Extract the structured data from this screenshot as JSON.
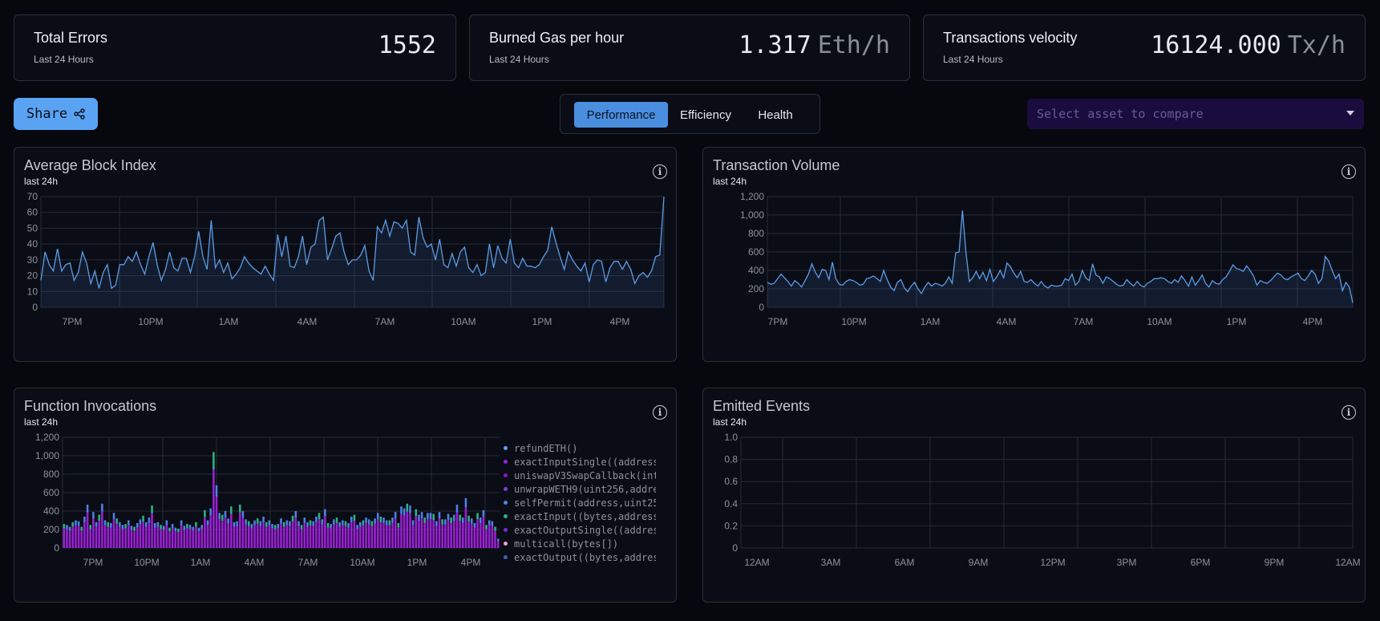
{
  "stats": [
    {
      "title": "Total Errors",
      "subtitle": "Last 24 Hours",
      "value": "1552",
      "unit": ""
    },
    {
      "title": "Burned Gas per hour",
      "subtitle": "Last 24 Hours",
      "value": "1.317",
      "unit": "Eth/h"
    },
    {
      "title": "Transactions velocity",
      "subtitle": "Last 24 Hours",
      "value": "16124.000",
      "unit": "Tx/h"
    }
  ],
  "toolbar": {
    "share_label": "Share",
    "tabs": [
      {
        "label": "Performance",
        "active": true
      },
      {
        "label": "Efficiency",
        "active": false
      },
      {
        "label": "Health",
        "active": false
      }
    ],
    "compare_placeholder": "Select asset to compare"
  },
  "cards": {
    "block_index": {
      "title": "Average Block Index",
      "subtitle": "last 24h",
      "info_icon": "info-icon"
    },
    "tx_volume": {
      "title": "Transaction Volume",
      "subtitle": "last 24h",
      "info_icon": "info-icon"
    },
    "function_invocations": {
      "title": "Function Invocations",
      "subtitle": "last 24h",
      "info_icon": "info-icon"
    },
    "emitted_events": {
      "title": "Emitted Events",
      "subtitle": "last 24h",
      "info_icon": "info-icon"
    }
  },
  "colors": {
    "accent": "#5aa2f2",
    "line": "#5b9ce6",
    "select_bg": "#1a0d3e"
  },
  "chart_data": [
    {
      "id": "block_index",
      "type": "area",
      "title": "Average Block Index",
      "x_tick_labels": [
        "7PM",
        "10PM",
        "1AM",
        "4AM",
        "7AM",
        "10AM",
        "1PM",
        "4PM"
      ],
      "y_ticks": [
        0,
        10,
        20,
        30,
        40,
        50,
        60,
        70
      ],
      "ylim": [
        0,
        70
      ],
      "grid": true,
      "values": [
        17,
        35,
        27,
        23,
        37,
        23,
        27,
        28,
        17,
        22,
        35,
        28,
        15,
        23,
        12,
        22,
        27,
        12,
        14,
        27,
        27,
        32,
        29,
        35,
        27,
        21,
        32,
        41,
        27,
        17,
        24,
        35,
        25,
        23,
        31,
        31,
        22,
        32,
        48,
        32,
        24,
        55,
        25,
        30,
        22,
        28,
        18,
        21,
        25,
        32,
        28,
        25,
        23,
        21,
        26,
        21,
        17,
        46,
        32,
        45,
        26,
        25,
        32,
        45,
        27,
        38,
        40,
        55,
        57,
        30,
        37,
        45,
        47,
        35,
        27,
        30,
        30,
        33,
        39,
        23,
        17,
        51,
        47,
        55,
        45,
        54,
        53,
        50,
        55,
        35,
        33,
        57,
        44,
        38,
        40,
        30,
        43,
        27,
        25,
        34,
        26,
        35,
        38,
        25,
        22,
        27,
        20,
        22,
        40,
        25,
        39,
        31,
        28,
        43,
        28,
        25,
        31,
        26,
        26,
        25,
        27,
        32,
        36,
        51,
        41,
        32,
        24,
        35,
        30,
        26,
        23,
        28,
        16,
        27,
        30,
        29,
        16,
        25,
        29,
        29,
        24,
        29,
        24,
        15,
        20,
        22,
        19,
        23,
        32,
        33,
        70
      ]
    },
    {
      "id": "tx_volume",
      "type": "area",
      "title": "Transaction Volume",
      "x_tick_labels": [
        "7PM",
        "10PM",
        "1AM",
        "4AM",
        "7AM",
        "10AM",
        "1PM",
        "4PM"
      ],
      "y_ticks": [
        0,
        200,
        400,
        600,
        800,
        "1,000",
        "1,200"
      ],
      "ylim": [
        0,
        1200
      ],
      "grid": true,
      "values": [
        270,
        250,
        260,
        310,
        360,
        320,
        280,
        230,
        290,
        260,
        220,
        290,
        360,
        470,
        380,
        320,
        410,
        400,
        300,
        490,
        310,
        250,
        240,
        280,
        300,
        290,
        270,
        240,
        250,
        310,
        320,
        340,
        310,
        280,
        400,
        300,
        220,
        180,
        270,
        300,
        210,
        170,
        230,
        270,
        200,
        150,
        220,
        270,
        230,
        260,
        250,
        230,
        260,
        330,
        260,
        590,
        600,
        1050,
        600,
        280,
        320,
        390,
        310,
        380,
        290,
        410,
        280,
        330,
        400,
        320,
        480,
        440,
        370,
        320,
        390,
        280,
        270,
        300,
        260,
        230,
        280,
        230,
        210,
        240,
        230,
        230,
        240,
        310,
        290,
        360,
        240,
        280,
        400,
        320,
        290,
        470,
        350,
        330,
        260,
        330,
        310,
        280,
        250,
        230,
        240,
        300,
        260,
        230,
        280,
        240,
        220,
        260,
        280,
        310,
        310,
        320,
        310,
        280,
        260,
        300,
        270,
        340,
        290,
        230,
        330,
        240,
        290,
        350,
        260,
        220,
        290,
        260,
        250,
        300,
        330,
        390,
        460,
        420,
        410,
        390,
        450,
        400,
        340,
        240,
        290,
        270,
        260,
        290,
        330,
        370,
        350,
        310,
        300,
        330,
        350,
        370,
        310,
        290,
        340,
        400,
        360,
        260,
        310,
        550,
        500,
        400,
        310,
        360,
        180,
        270,
        220,
        50
      ]
    },
    {
      "id": "function_invocations",
      "type": "bar",
      "title": "Function Invocations",
      "stacked": true,
      "x_tick_labels": [
        "7PM",
        "10PM",
        "1AM",
        "4AM",
        "7AM",
        "10AM",
        "1PM",
        "4PM"
      ],
      "y_ticks": [
        0,
        200,
        400,
        600,
        800,
        "1,000",
        "1,200"
      ],
      "ylim": [
        0,
        1200
      ],
      "grid": true,
      "values": [
        260,
        250,
        230,
        280,
        300,
        290,
        230,
        340,
        470,
        250,
        390,
        280,
        360,
        480,
        300,
        280,
        270,
        380,
        320,
        280,
        250,
        260,
        300,
        240,
        230,
        270,
        310,
        350,
        280,
        330,
        460,
        270,
        280,
        250,
        240,
        300,
        220,
        260,
        220,
        210,
        300,
        240,
        260,
        250,
        230,
        280,
        220,
        250,
        410,
        300,
        430,
        1040,
        680,
        380,
        360,
        400,
        320,
        450,
        280,
        290,
        470,
        400,
        310,
        290,
        260,
        300,
        320,
        290,
        340,
        280,
        300,
        260,
        250,
        260,
        320,
        280,
        300,
        290,
        350,
        400,
        290,
        250,
        330,
        280,
        300,
        290,
        340,
        380,
        310,
        420,
        270,
        260,
        310,
        330,
        280,
        300,
        290,
        270,
        340,
        360,
        250,
        280,
        300,
        330,
        310,
        290,
        320,
        380,
        340,
        330,
        300,
        300,
        330,
        390,
        270,
        450,
        430,
        480,
        460,
        300,
        420,
        360,
        390,
        330,
        380,
        380,
        370,
        290,
        390,
        310,
        310,
        370,
        330,
        360,
        470,
        360,
        330,
        540,
        350,
        320,
        270,
        380,
        330,
        410,
        250,
        300,
        290,
        230,
        100
      ],
      "legend": [
        "refundETH()",
        "exactInputSingle((address",
        "uniswapV3SwapCallback(int",
        "unwrapWETH9(uint256,addre",
        "selfPermit(address,uint25",
        "exactInput((bytes,address",
        "exactOutputSingle((addres",
        "multicall(bytes[])",
        "exactOutput((bytes,addres"
      ],
      "legend_colors": [
        "#5aa2f2",
        "#9b20d6",
        "#8a16c8",
        "#7c3ee6",
        "#4f7fe8",
        "#2bb37e",
        "#6a2fd6",
        "#f0a0c0",
        "#3d5fb0"
      ]
    },
    {
      "id": "emitted_events",
      "type": "line",
      "title": "Emitted Events",
      "x_tick_labels": [
        "12AM",
        "3AM",
        "6AM",
        "9AM",
        "12PM",
        "3PM",
        "6PM",
        "9PM",
        "12AM"
      ],
      "y_ticks": [
        "0",
        "0.2",
        "0.4",
        "0.6",
        "0.8",
        "1.0"
      ],
      "ylim": [
        0,
        1
      ],
      "grid": true,
      "values": []
    }
  ]
}
